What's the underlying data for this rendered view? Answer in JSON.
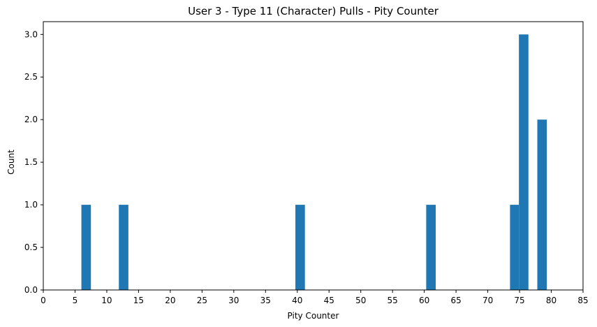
{
  "chart_data": {
    "type": "bar",
    "title": "User 3 - Type 11 (Character) Pulls - Pity Counter",
    "xlabel": "Pity Counter",
    "ylabel": "Count",
    "xlim": [
      0,
      85
    ],
    "ylim": [
      0,
      3.15
    ],
    "xticks": [
      0,
      5,
      10,
      15,
      20,
      25,
      30,
      35,
      40,
      45,
      50,
      55,
      60,
      65,
      70,
      75,
      80,
      85
    ],
    "yticks": [
      "0.0",
      "0.5",
      "1.0",
      "1.5",
      "2.0",
      "2.5",
      "3.0"
    ],
    "grid": false,
    "bins": [
      {
        "x0": 6.0,
        "x1": 7.5,
        "value": 1
      },
      {
        "x0": 11.9,
        "x1": 13.4,
        "value": 1
      },
      {
        "x0": 39.7,
        "x1": 41.2,
        "value": 1
      },
      {
        "x0": 60.3,
        "x1": 61.8,
        "value": 1
      },
      {
        "x0": 73.5,
        "x1": 74.9,
        "value": 1
      },
      {
        "x0": 74.9,
        "x1": 76.4,
        "value": 3
      },
      {
        "x0": 77.8,
        "x1": 79.3,
        "value": 2
      }
    ],
    "bar_color": "#1f77b4"
  }
}
